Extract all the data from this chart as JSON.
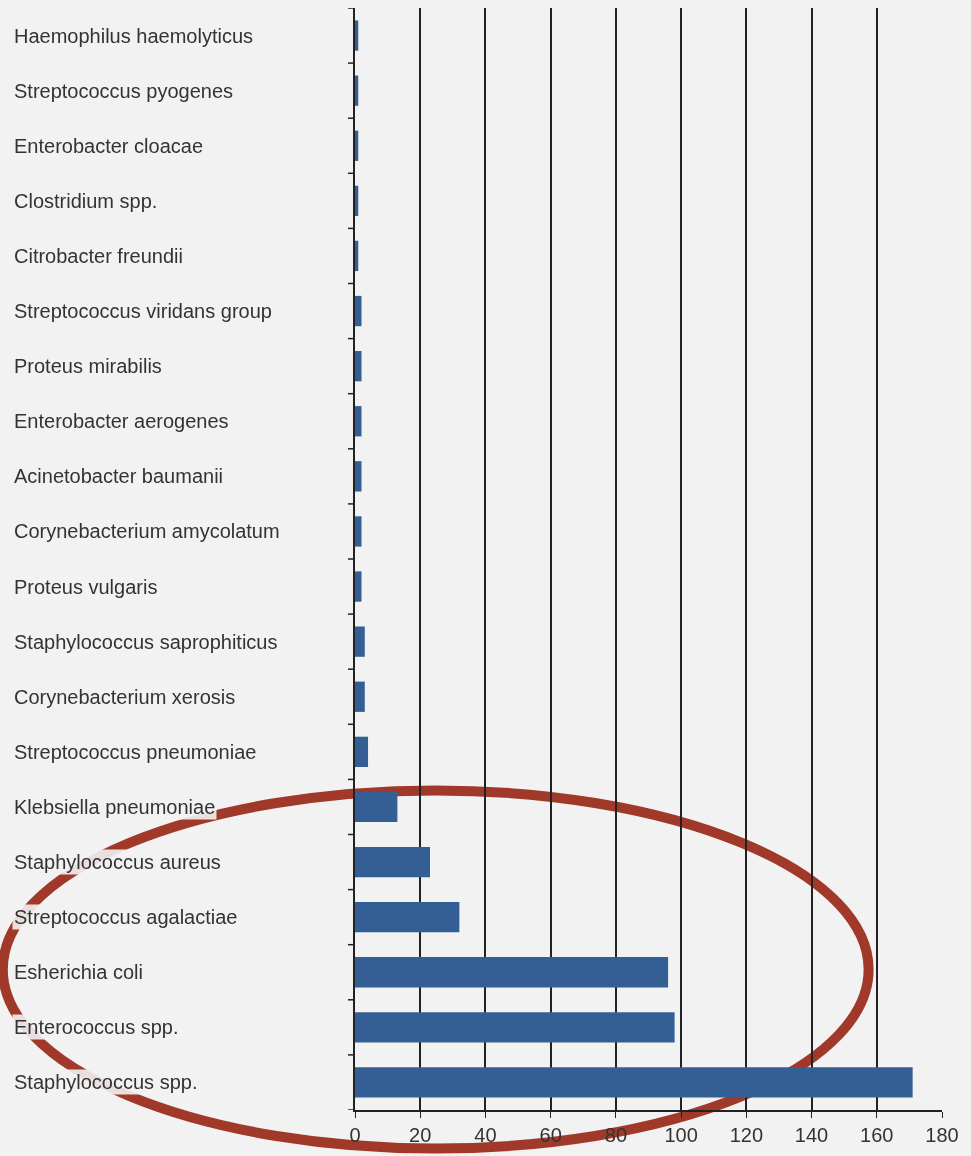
{
  "chart_data": {
    "type": "bar",
    "orientation": "horizontal",
    "categories": [
      "Haemophilus haemolyticus",
      "Streptococcus pyogenes",
      "Enterobacter cloacae",
      "Clostridium spp.",
      "Citrobacter freundii",
      "Streptococcus viridans group",
      "Proteus mirabilis",
      "Enterobacter aerogenes",
      "Acinetobacter baumanii",
      "Corynebacterium amycolatum",
      "Proteus vulgaris",
      "Staphylococcus saprophiticus",
      "Corynebacterium xerosis",
      "Streptococcus pneumoniae",
      "Klebsiella pneumoniae",
      "Staphylococcus aureus",
      "Streptococcus agalactiae",
      "Esherichia coli",
      "Enterococcus spp.",
      "Staphylococcus spp."
    ],
    "values": [
      1,
      1,
      1,
      1,
      1,
      2,
      2,
      2,
      2,
      2,
      2,
      3,
      3,
      4,
      13,
      23,
      32,
      96,
      98,
      171
    ],
    "color": "#345f94",
    "xlim": [
      0,
      180
    ],
    "xticks": [
      0,
      20,
      40,
      60,
      80,
      100,
      120,
      140,
      160,
      180
    ],
    "grid": "x"
  }
}
